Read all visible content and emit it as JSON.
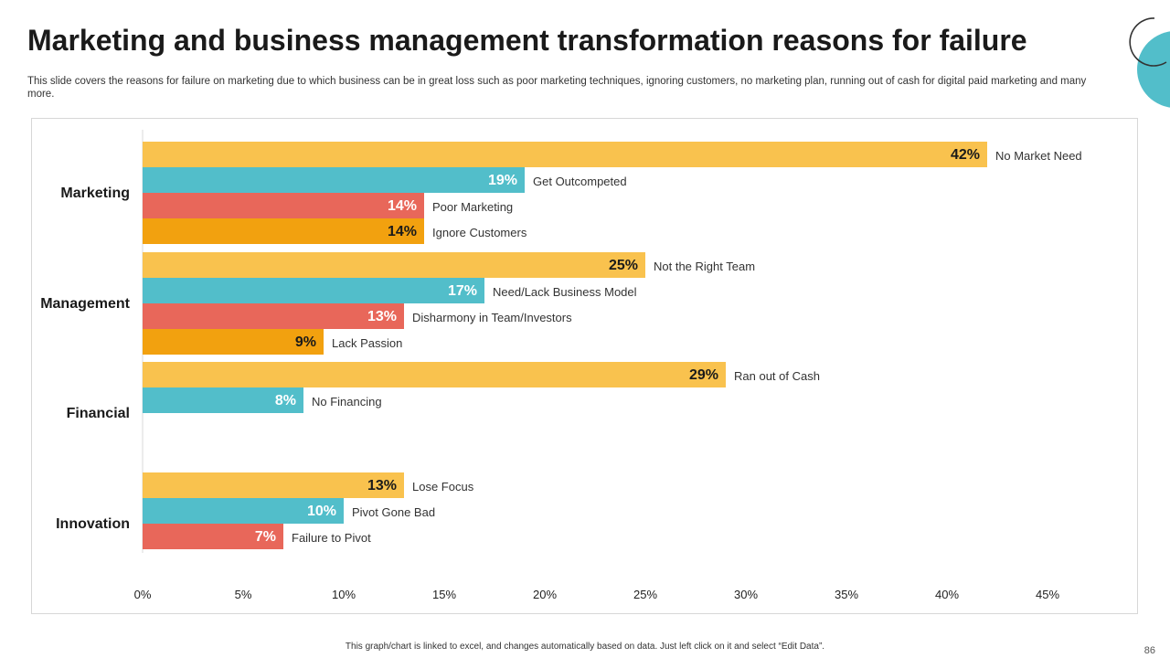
{
  "slide": {
    "title": "Marketing and business management transformation reasons for failure",
    "subtitle": "This slide covers the reasons for failure on marketing due to which business can be in great loss such as poor marketing techniques, ignoring customers, no marketing plan, running out of cash for digital paid marketing and many more.",
    "footer_note": "This graph/chart is linked to excel, and changes automatically based on data. Just left click on it and select “Edit Data”.",
    "page_number": "86"
  },
  "colors": {
    "yellow": "#F9C24E",
    "teal": "#52BECA",
    "red": "#E8675A",
    "orange": "#F2A10F",
    "accent_circle": "#52BECA",
    "grid_line": "#d9d9d9"
  },
  "chart_data": {
    "type": "bar",
    "orientation": "horizontal",
    "xlim": [
      0,
      45
    ],
    "x_ticks": [
      "0%",
      "5%",
      "10%",
      "15%",
      "20%",
      "25%",
      "30%",
      "35%",
      "40%",
      "45%"
    ],
    "grid": false,
    "groups": [
      {
        "category": "Marketing",
        "bars": [
          {
            "label": "No Market Need",
            "value": 42,
            "display": "42%",
            "color": "yellow"
          },
          {
            "label": "Get Outcompeted",
            "value": 19,
            "display": "19%",
            "color": "teal"
          },
          {
            "label": "Poor Marketing",
            "value": 14,
            "display": "14%",
            "color": "red"
          },
          {
            "label": "Ignore Customers",
            "value": 14,
            "display": "14%",
            "color": "orange"
          }
        ]
      },
      {
        "category": "Management",
        "bars": [
          {
            "label": "Not the Right Team",
            "value": 25,
            "display": "25%",
            "color": "yellow"
          },
          {
            "label": "Need/Lack Business Model",
            "value": 17,
            "display": "17%",
            "color": "teal"
          },
          {
            "label": "Disharmony in Team/Investors",
            "value": 13,
            "display": "13%",
            "color": "red"
          },
          {
            "label": "Lack Passion",
            "value": 9,
            "display": "9%",
            "color": "orange"
          }
        ]
      },
      {
        "category": "Financial",
        "bars": [
          {
            "label": "Ran out of Cash",
            "value": 29,
            "display": "29%",
            "color": "yellow"
          },
          {
            "label": "No Financing",
            "value": 8,
            "display": "8%",
            "color": "teal"
          }
        ]
      },
      {
        "category": "Innovation",
        "bars": [
          {
            "label": "Lose Focus",
            "value": 13,
            "display": "13%",
            "color": "yellow"
          },
          {
            "label": "Pivot Gone Bad",
            "value": 10,
            "display": "10%",
            "color": "teal"
          },
          {
            "label": "Failure to Pivot",
            "value": 7,
            "display": "7%",
            "color": "red"
          }
        ]
      }
    ]
  }
}
